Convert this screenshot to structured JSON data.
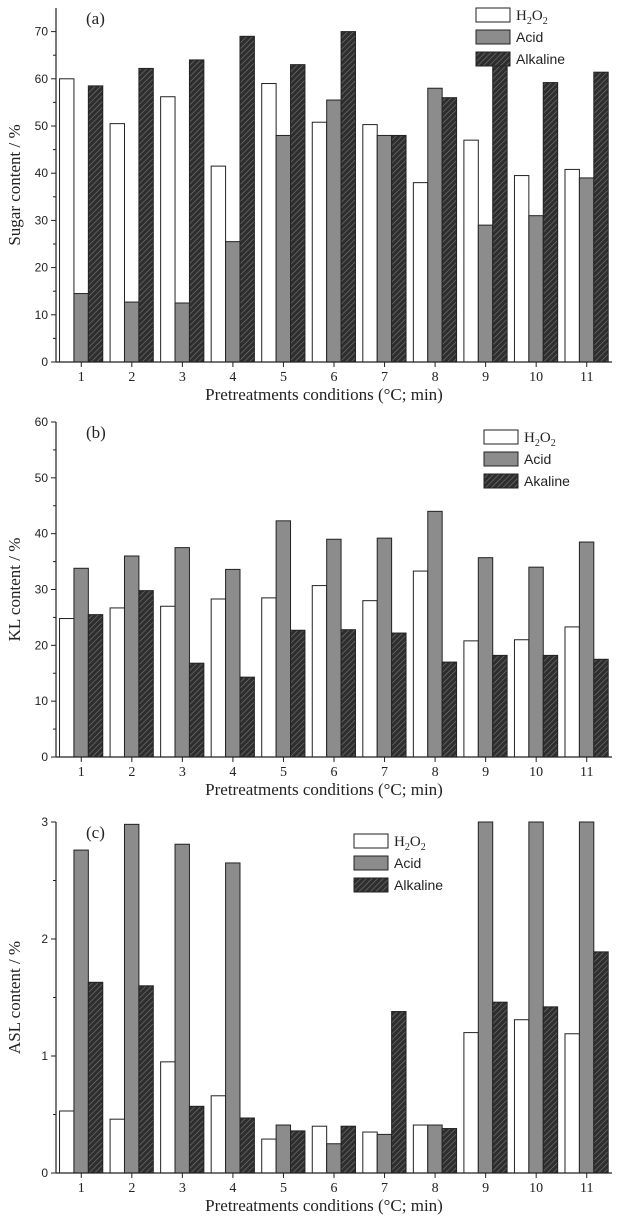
{
  "figure": {
    "colors": {
      "h2o2": "#ffffff",
      "acid": "#8c8c8c",
      "alkaline": "#2e2e2e",
      "axis": "#222222"
    }
  },
  "chart_data": [
    {
      "panel_label": "(a)",
      "type": "bar",
      "ylabel": "Sugar content / %",
      "xlabel": "Pretreatments conditions (°C; min)",
      "categories": [
        "1",
        "2",
        "3",
        "4",
        "5",
        "6",
        "7",
        "8",
        "9",
        "10",
        "11"
      ],
      "ylim": [
        0,
        75
      ],
      "yticks": [
        0,
        10,
        20,
        30,
        40,
        50,
        60,
        70
      ],
      "legend_position": "top-right",
      "series": [
        {
          "name": "H2O2",
          "name_main": "H",
          "name_sub1": "2",
          "name_mid": "O",
          "name_sub2": "2",
          "pattern": "white",
          "values": [
            60,
            50.5,
            56.2,
            41.5,
            59,
            50.8,
            50.3,
            38,
            47,
            39.5,
            40.8
          ]
        },
        {
          "name": "Acid",
          "pattern": "gray",
          "values": [
            14.5,
            12.7,
            12.5,
            25.5,
            48,
            55.5,
            48,
            58,
            29,
            31,
            39
          ]
        },
        {
          "name": "Alkaline",
          "pattern": "hatch",
          "values": [
            58.5,
            62.2,
            64,
            69,
            63,
            70,
            48,
            56,
            64,
            59.2,
            61.4
          ]
        }
      ]
    },
    {
      "panel_label": "(b)",
      "type": "bar",
      "ylabel": "KL content / %",
      "xlabel": "Pretreatments conditions (°C; min)",
      "categories": [
        "1",
        "2",
        "3",
        "4",
        "5",
        "6",
        "7",
        "8",
        "9",
        "10",
        "11"
      ],
      "ylim": [
        0,
        60
      ],
      "yticks": [
        0,
        10,
        20,
        30,
        40,
        50,
        60
      ],
      "legend_position": "top-right",
      "series": [
        {
          "name": "H2O2",
          "name_main": "H",
          "name_sub1": "2",
          "name_mid": "O",
          "name_sub2": "2",
          "pattern": "white",
          "values": [
            24.8,
            26.7,
            27,
            28.3,
            28.5,
            30.7,
            28,
            33.3,
            20.8,
            21,
            23.3
          ]
        },
        {
          "name": "Acid",
          "pattern": "gray",
          "values": [
            33.8,
            36,
            37.5,
            33.6,
            42.3,
            39,
            39.2,
            44,
            35.7,
            34,
            38.5
          ]
        },
        {
          "name": "Akaline",
          "pattern": "hatch",
          "values": [
            25.5,
            29.8,
            16.8,
            14.3,
            22.7,
            22.8,
            22.2,
            17,
            18.2,
            18.2,
            17.5
          ]
        }
      ]
    },
    {
      "panel_label": "(c)",
      "type": "bar",
      "ylabel": "ASL content / %",
      "xlabel": "Pretreatments conditions (°C; min)",
      "categories": [
        "1",
        "2",
        "3",
        "4",
        "5",
        "6",
        "7",
        "8",
        "9",
        "10",
        "11"
      ],
      "ylim": [
        0,
        3
      ],
      "yticks": [
        0,
        1,
        2,
        3
      ],
      "legend_position": "top-right",
      "series": [
        {
          "name": "H2O2",
          "name_main": "H",
          "name_sub1": "2",
          "name_mid": "O",
          "name_sub2": "2",
          "pattern": "white",
          "values": [
            0.53,
            0.46,
            0.95,
            0.66,
            0.29,
            0.4,
            0.35,
            0.41,
            1.2,
            1.31,
            1.19
          ]
        },
        {
          "name": "Acid",
          "pattern": "gray",
          "values": [
            2.76,
            2.98,
            2.81,
            2.65,
            0.41,
            0.25,
            0.33,
            0.41,
            3.0,
            3.0,
            3.0
          ]
        },
        {
          "name": "Alkaline",
          "pattern": "hatch",
          "values": [
            1.63,
            1.6,
            0.57,
            0.47,
            0.36,
            0.4,
            1.38,
            0.38,
            1.46,
            1.42,
            1.89
          ]
        }
      ]
    }
  ]
}
